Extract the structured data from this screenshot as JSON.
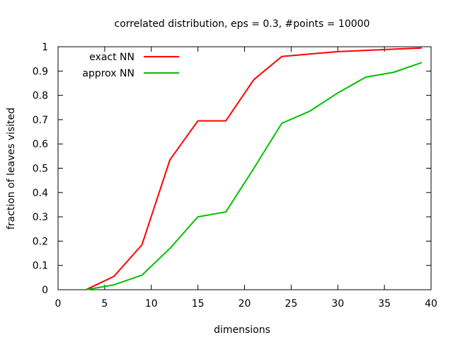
{
  "chart_data": {
    "type": "line",
    "title": "correlated distribution, eps = 0.3, #points = 10000",
    "xlabel": "dimensions",
    "ylabel": "fraction of leaves visited",
    "xlim": [
      0,
      40
    ],
    "ylim": [
      0,
      1
    ],
    "xticks": [
      0,
      5,
      10,
      15,
      20,
      25,
      30,
      35,
      40
    ],
    "yticks": [
      0,
      0.1,
      0.2,
      0.3,
      0.4,
      0.5,
      0.6,
      0.7,
      0.8,
      0.9,
      1
    ],
    "grid": false,
    "legend_position": "top-left",
    "series": [
      {
        "name": "exact NN",
        "color": "#ff0000",
        "x": [
          3,
          6,
          9,
          12,
          15,
          18,
          21,
          24,
          27,
          30,
          33,
          36,
          39
        ],
        "y": [
          0.0,
          0.055,
          0.185,
          0.535,
          0.695,
          0.695,
          0.865,
          0.96,
          0.97,
          0.98,
          0.985,
          0.99,
          0.995
        ]
      },
      {
        "name": "approx NN",
        "color": "#00c000",
        "x": [
          3,
          6,
          9,
          12,
          15,
          18,
          21,
          24,
          27,
          30,
          33,
          36,
          39
        ],
        "y": [
          0.0,
          0.02,
          0.06,
          0.17,
          0.3,
          0.32,
          0.5,
          0.685,
          0.735,
          0.81,
          0.875,
          0.895,
          0.935
        ]
      }
    ]
  }
}
